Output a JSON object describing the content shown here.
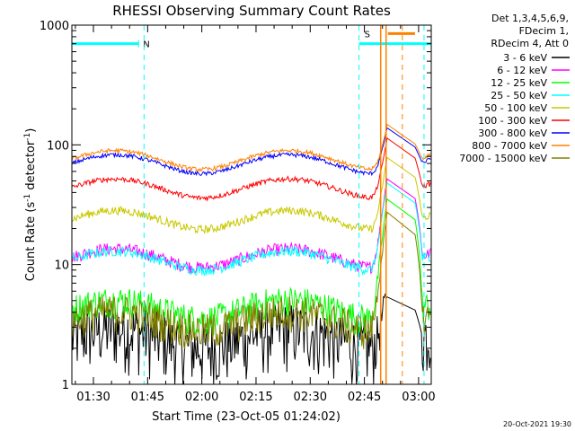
{
  "chart_data": {
    "type": "line",
    "title": "RHESSI Observing Summary Count Rates",
    "xlabel": "Start Time (23-Oct-05 01:24:02)",
    "ylabel_main": "Count Rate (s",
    "ylabel_sup1": "-1",
    "ylabel_mid": " detector",
    "ylabel_sup2": "-1",
    "ylabel_end": ")",
    "y_scale": "log",
    "ylim": [
      1,
      1000
    ],
    "xlim_minutes": [
      84.03,
      183.5
    ],
    "x_ticks": [
      {
        "label": "01:30",
        "minute": 90
      },
      {
        "label": "01:45",
        "minute": 105
      },
      {
        "label": "02:00",
        "minute": 120
      },
      {
        "label": "02:15",
        "minute": 135
      },
      {
        "label": "02:30",
        "minute": 150
      },
      {
        "label": "02:45",
        "minute": 165
      },
      {
        "label": "03:00",
        "minute": 180
      }
    ],
    "y_ticks": [
      {
        "label": "1",
        "value": 1
      },
      {
        "label": "10",
        "value": 10
      },
      {
        "label": "100",
        "value": 100
      },
      {
        "label": "1000",
        "value": 1000
      }
    ],
    "legend_header": [
      "Det 1,3,4,5,6,9,",
      "FDecim 1,",
      "RDecim 4, Att 0"
    ],
    "series": [
      {
        "name": "3 - 6 keV",
        "color": "#000000",
        "base": 2.5,
        "noise": 0.6,
        "flare_peak": 7
      },
      {
        "name": "6 - 12 keV",
        "color": "#ff00ff",
        "base": 11.5,
        "noise": 0.12,
        "flare_peak": 60
      },
      {
        "name": "12 - 25 keV",
        "color": "#00ff00",
        "base": 4.3,
        "noise": 0.3,
        "flare_peak": 40
      },
      {
        "name": "25 - 50 keV",
        "color": "#00ffff",
        "base": 11.0,
        "noise": 0.1,
        "flare_peak": 55
      },
      {
        "name": "50 - 100 keV",
        "color": "#c8c800",
        "base": 24,
        "noise": 0.08,
        "flare_peak": 90
      },
      {
        "name": "100 - 300 keV",
        "color": "#ff0000",
        "base": 44,
        "noise": 0.05,
        "flare_peak": 130
      },
      {
        "name": "300 - 800 keV",
        "color": "#0000ff",
        "base": 70,
        "noise": 0.04,
        "flare_peak": 160
      },
      {
        "name": "800 - 7000 keV",
        "color": "#ff8000",
        "base": 76,
        "noise": 0.04,
        "flare_peak": 170
      },
      {
        "name": "7000 - 15000 keV",
        "color": "#808000",
        "base": 3.5,
        "noise": 0.35,
        "flare_peak": 30
      }
    ],
    "annotations": {
      "n_label": "N",
      "s_label": "S",
      "night_intervals_minutes": [
        [
          84.03,
          102.5
        ],
        [
          163.5,
          183.5
        ]
      ],
      "saa_interval_minutes": [
        171.5,
        179
      ],
      "dashed_markers_minutes": [
        104,
        163.5,
        175.5,
        181.5
      ],
      "orange_markers_minutes": [
        169.5,
        171
      ],
      "band_level": 700
    },
    "footer_timestamp": "20-Oct-2021 19:30"
  }
}
